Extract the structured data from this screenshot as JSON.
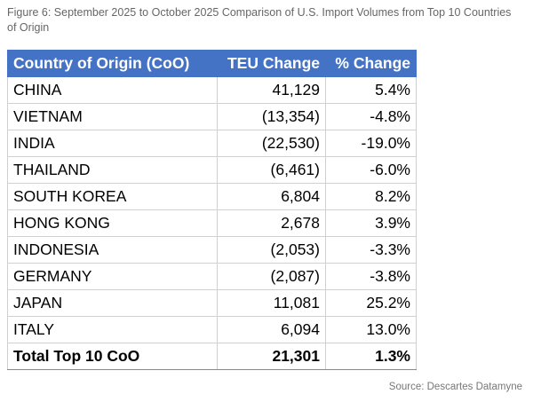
{
  "caption": "Figure 6: September 2025 to October 2025 Comparison of U.S. Import Volumes from Top 10 Countries of Origin",
  "table": {
    "header": [
      "Country of Origin (CoO)",
      "TEU Change",
      "% Change"
    ],
    "rows": [
      [
        "CHINA",
        "41,129",
        "5.4%"
      ],
      [
        "VIETNAM",
        "(13,354)",
        "-4.8%"
      ],
      [
        "INDIA",
        "(22,530)",
        "-19.0%"
      ],
      [
        "THAILAND",
        "(6,461)",
        "-6.0%"
      ],
      [
        "SOUTH KOREA",
        "6,804",
        "8.2%"
      ],
      [
        "HONG KONG",
        "2,678",
        "3.9%"
      ],
      [
        "INDONESIA",
        "(2,053)",
        "-3.3%"
      ],
      [
        "GERMANY",
        "(2,087)",
        "-3.8%"
      ],
      [
        "JAPAN",
        "11,081",
        "25.2%"
      ],
      [
        "ITALY",
        "6,094",
        "13.0%"
      ]
    ],
    "total": [
      "Total Top 10 CoO",
      "21,301",
      "1.3%"
    ]
  },
  "source": "Source: Descartes Datamyne"
}
